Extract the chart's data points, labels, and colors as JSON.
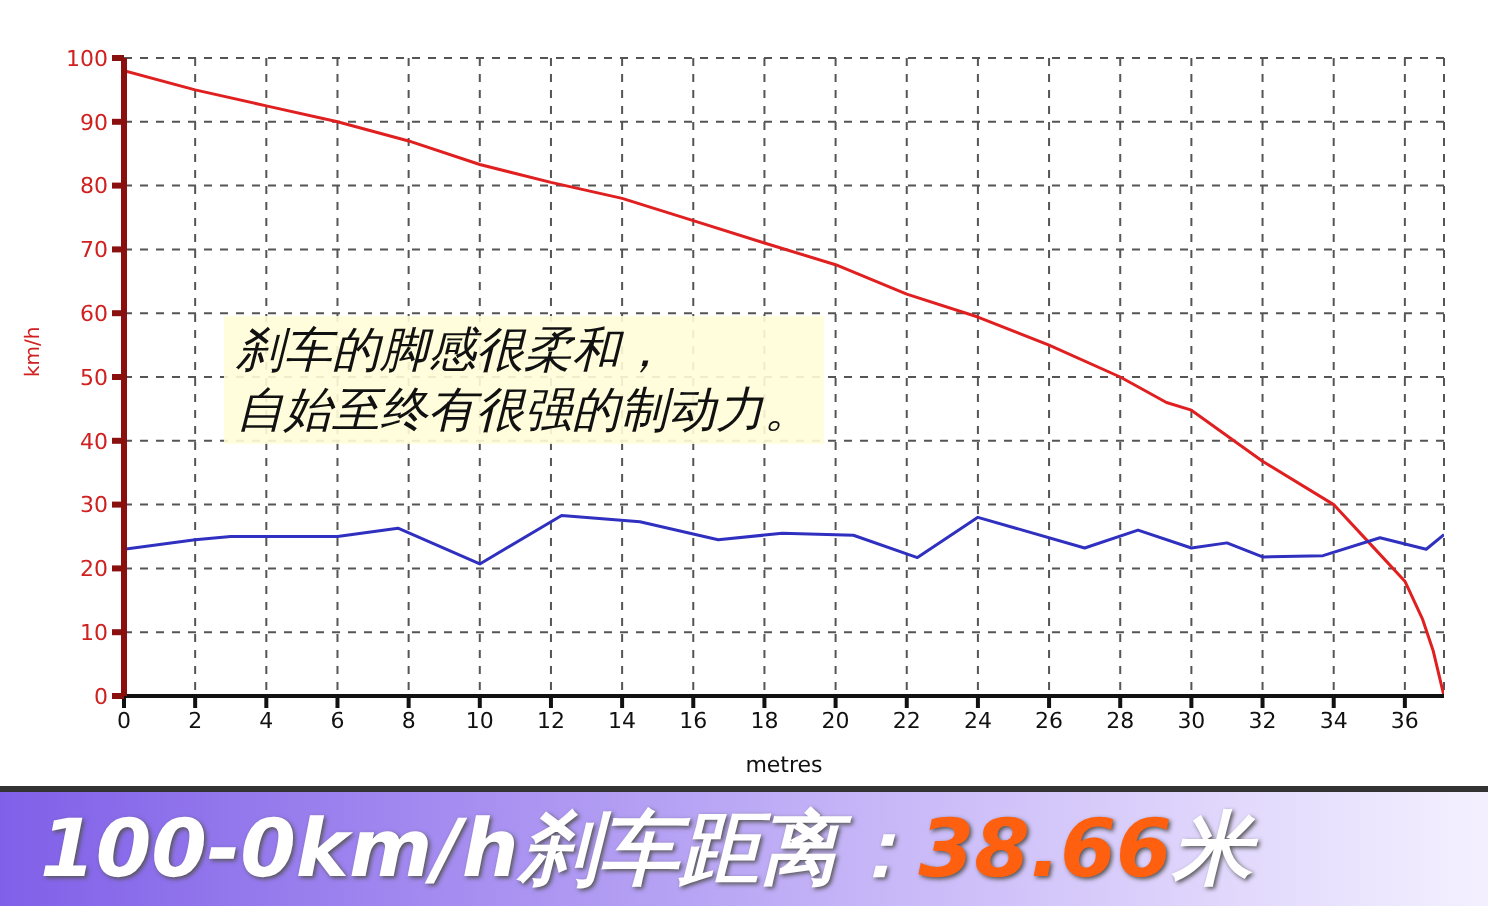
{
  "chart_data": {
    "type": "line",
    "title": "100-0km/h刹车距离：38.66米",
    "xlabel": "metres",
    "ylabel": "km/h",
    "annotations": [
      "刹车的脚感很柔和，",
      "自始至终有很强的制动力。"
    ],
    "xlim": [
      0,
      37.1
    ],
    "xticks": [
      0,
      2,
      4,
      6,
      8,
      10,
      12,
      14,
      16,
      18,
      20,
      22,
      24,
      26,
      28,
      30,
      32,
      34,
      36
    ],
    "ylim": [
      0,
      100
    ],
    "yticks": [
      0,
      10,
      20,
      30,
      40,
      50,
      60,
      70,
      80,
      90,
      100
    ],
    "grid": true,
    "legend": false,
    "marker": "none",
    "line_style": "solid",
    "series": [
      {
        "color": "#e02020",
        "x": [
          0,
          2,
          4,
          6,
          8,
          10,
          12,
          14,
          16,
          18,
          20,
          22,
          24,
          26,
          28,
          29.3,
          30,
          32,
          34,
          35,
          36,
          36.5,
          36.8,
          37.1
        ],
        "values": [
          98,
          95,
          92.5,
          90,
          87,
          83.3,
          80.5,
          78,
          74.5,
          71,
          67.6,
          63,
          59.4,
          55,
          50,
          46,
          44.8,
          36.8,
          30,
          24,
          18,
          12,
          7,
          0
        ]
      },
      {
        "color": "#3030c0",
        "x": [
          0,
          2,
          3,
          6,
          7.7,
          10,
          12.3,
          14.5,
          16.7,
          18.5,
          20.5,
          22.3,
          24,
          27,
          28.5,
          30,
          31,
          32,
          33.7,
          35.3,
          36.6,
          37.1
        ],
        "values": [
          23,
          24.5,
          25,
          25,
          26.3,
          20.7,
          28.3,
          27.3,
          24.5,
          25.5,
          25.2,
          21.7,
          28,
          23.2,
          26,
          23.2,
          24,
          21.8,
          22,
          24.8,
          23,
          25.3
        ]
      }
    ]
  }
}
